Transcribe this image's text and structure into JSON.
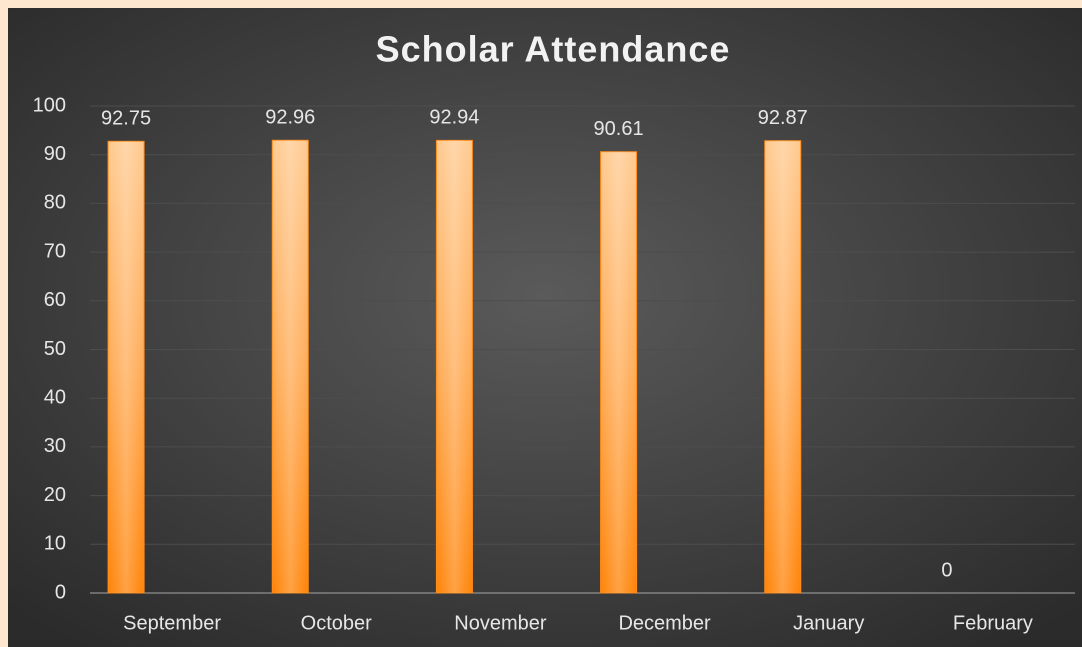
{
  "chart_data": {
    "type": "bar",
    "title": "Scholar Attendance",
    "categories": [
      "September",
      "October",
      "November",
      "December",
      "January",
      "February"
    ],
    "values": [
      92.75,
      92.96,
      92.94,
      90.61,
      92.87,
      0
    ],
    "color": "#ff8c1a",
    "ylim": [
      0,
      100
    ],
    "yticks": [
      0,
      10,
      20,
      30,
      40,
      50,
      60,
      70,
      80,
      90,
      100
    ],
    "grid": true
  }
}
